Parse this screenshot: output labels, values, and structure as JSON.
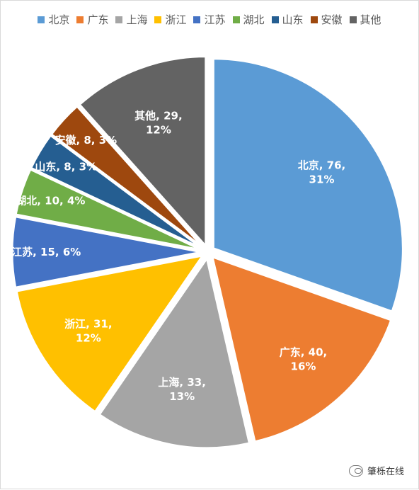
{
  "chart_data": {
    "type": "pie",
    "legend_position": "top",
    "slices": [
      {
        "name": "北京",
        "value": 76,
        "percent": "31%",
        "color": "#5B9BD5",
        "label_l1": "北京, 76,",
        "label_l2": "31%"
      },
      {
        "name": "广东",
        "value": 40,
        "percent": "16%",
        "color": "#ED7D31",
        "label_l1": "广东, 40,",
        "label_l2": "16%"
      },
      {
        "name": "上海",
        "value": 33,
        "percent": "13%",
        "color": "#A5A5A5",
        "label_l1": "上海, 33,",
        "label_l2": "13%"
      },
      {
        "name": "浙江",
        "value": 31,
        "percent": "12%",
        "color": "#FFC000",
        "label_l1": "浙江, 31,",
        "label_l2": "12%"
      },
      {
        "name": "江苏",
        "value": 15,
        "percent": "6%",
        "color": "#4472C4",
        "label_l1": "江苏, 15, 6%",
        "label_l2": ""
      },
      {
        "name": "湖北",
        "value": 10,
        "percent": "4%",
        "color": "#70AD47",
        "label_l1": "湖北, 10, 4%",
        "label_l2": ""
      },
      {
        "name": "山东",
        "value": 8,
        "percent": "3%",
        "color": "#255E91",
        "label_l1": "山东, 8, 3%",
        "label_l2": ""
      },
      {
        "name": "安徽",
        "value": 8,
        "percent": "3%",
        "color": "#9E480E",
        "label_l1": "安徽, 8, 3%",
        "label_l2": ""
      },
      {
        "name": "其他",
        "value": 29,
        "percent": "12%",
        "color": "#636363",
        "label_l1": "其他, 29,",
        "label_l2": "12%"
      }
    ]
  },
  "watermark": {
    "text": "肇栎在线"
  }
}
